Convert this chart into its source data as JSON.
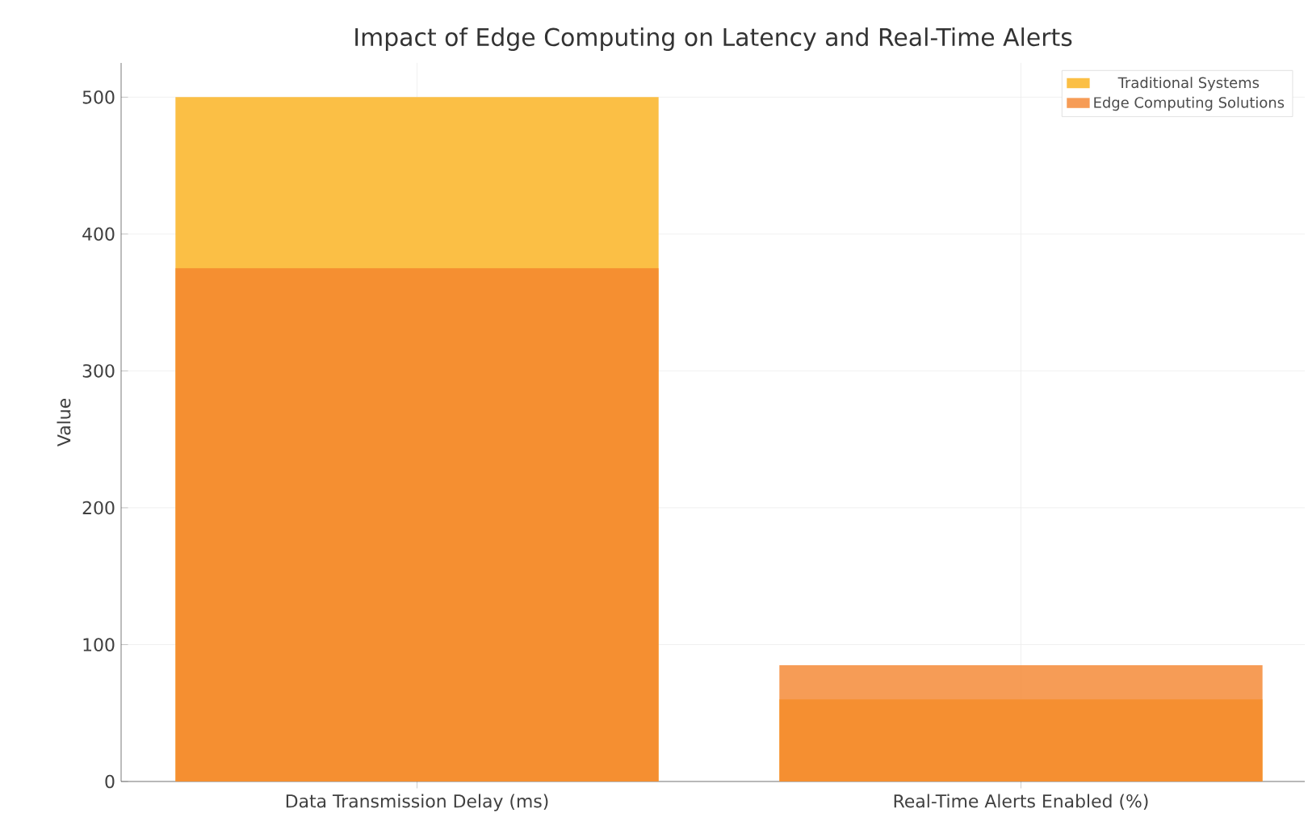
{
  "chart_data": {
    "type": "bar",
    "title": "Impact of Edge Computing on Latency and Real-Time Alerts",
    "ylabel": "Value",
    "categories": [
      "Data Transmission Delay (ms)",
      "Real-Time Alerts Enabled (%)"
    ],
    "series": [
      {
        "name": "Traditional Systems",
        "color": "#fbbf45",
        "values": [
          500,
          60
        ]
      },
      {
        "name": "Edge Computing Solutions",
        "color": "#f4832c",
        "values": [
          375,
          85
        ]
      }
    ],
    "ylim": [
      0,
      525
    ],
    "yticks": [
      0,
      100,
      200,
      300,
      400,
      500
    ],
    "grid": true,
    "legend": "top right"
  }
}
